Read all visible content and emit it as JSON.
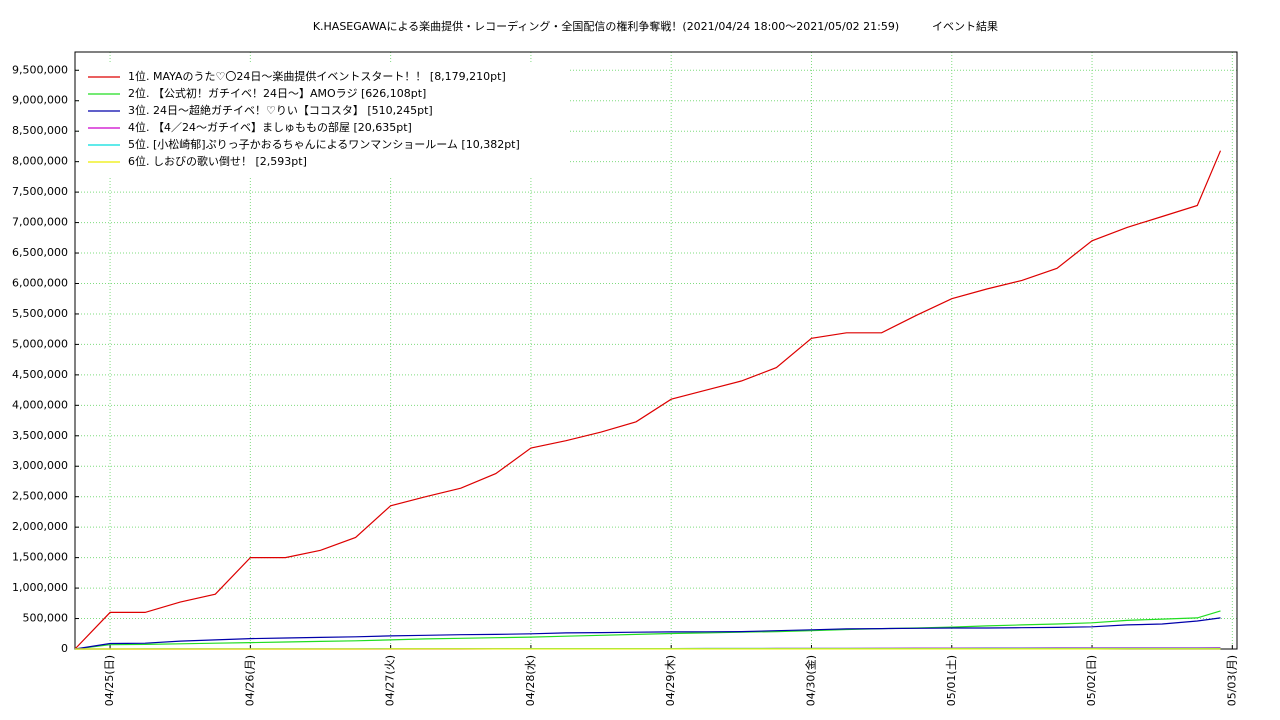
{
  "chart_data": {
    "type": "line",
    "title": "K.HASEGAWAによる楽曲提供・レコーディング・全国配信の権利争奪戦！(2021/04/24 18:00〜2021/05/02 21:59)",
    "subtitle": "イベント結果",
    "x": [
      "2021-04-24 18:00",
      "2021-04-25 00:00",
      "2021-04-25 06:00",
      "2021-04-25 12:00",
      "2021-04-25 18:00",
      "2021-04-26 00:00",
      "2021-04-26 06:00",
      "2021-04-26 12:00",
      "2021-04-26 18:00",
      "2021-04-27 00:00",
      "2021-04-27 06:00",
      "2021-04-27 12:00",
      "2021-04-27 18:00",
      "2021-04-28 00:00",
      "2021-04-28 06:00",
      "2021-04-28 12:00",
      "2021-04-28 18:00",
      "2021-04-29 00:00",
      "2021-04-29 06:00",
      "2021-04-29 12:00",
      "2021-04-29 18:00",
      "2021-04-30 00:00",
      "2021-04-30 06:00",
      "2021-04-30 12:00",
      "2021-04-30 18:00",
      "2021-05-01 00:00",
      "2021-05-01 06:00",
      "2021-05-01 12:00",
      "2021-05-01 18:00",
      "2021-05-02 00:00",
      "2021-05-02 06:00",
      "2021-05-02 12:00",
      "2021-05-02 18:00",
      "2021-05-02 21:59"
    ],
    "series": [
      {
        "name": "1位. MAYAのうた♡〇24日〜楽曲提供イベントスタート！！ [8,179,210pt]",
        "color": "#dd0000",
        "values": [
          0,
          600000,
          600000,
          770000,
          900000,
          1500000,
          1500000,
          1620000,
          1830000,
          2350000,
          2500000,
          2640000,
          2880000,
          3300000,
          3420000,
          3560000,
          3730000,
          4100000,
          4250000,
          4400000,
          4620000,
          5100000,
          5190000,
          5190000,
          5480000,
          5750000,
          5910000,
          6050000,
          6250000,
          6700000,
          6920000,
          7100000,
          7280000,
          8179210
        ]
      },
      {
        "name": "2位. 【公式初！ガチイベ！24日〜】AMOラジ [626,108pt]",
        "color": "#22dd22",
        "values": [
          0,
          70000,
          75000,
          85000,
          95000,
          105000,
          115000,
          125000,
          135000,
          150000,
          165000,
          175000,
          185000,
          195000,
          210000,
          225000,
          240000,
          255000,
          265000,
          275000,
          285000,
          300000,
          320000,
          335000,
          345000,
          360000,
          380000,
          395000,
          410000,
          430000,
          470000,
          490000,
          510000,
          626108
        ]
      },
      {
        "name": "3位. 24日〜超絶ガチイベ！♡りい【ココスタ】 [510,245pt]",
        "color": "#0000aa",
        "values": [
          0,
          90000,
          95000,
          130000,
          150000,
          170000,
          180000,
          190000,
          200000,
          215000,
          225000,
          235000,
          240000,
          250000,
          265000,
          270000,
          275000,
          280000,
          282000,
          285000,
          300000,
          315000,
          330000,
          335000,
          340000,
          345000,
          345000,
          350000,
          355000,
          365000,
          395000,
          410000,
          460000,
          510245
        ]
      },
      {
        "name": "4位. 【4／24〜ガチイベ】ましゅももの部屋 [20,635pt]",
        "color": "#cc00cc",
        "values": [
          0,
          0,
          0,
          0,
          0,
          0,
          0,
          0,
          0,
          0,
          0,
          0,
          2000,
          3000,
          4000,
          5000,
          6000,
          7000,
          8000,
          9000,
          10000,
          11000,
          12000,
          13000,
          14000,
          15000,
          16000,
          17000,
          17500,
          18000,
          18500,
          19000,
          20000,
          20635
        ]
      },
      {
        "name": "5位. [小松崎郁]ぷりっ子かおるちゃんによるワンマンショールーム [10,382pt]",
        "color": "#00dddd",
        "values": [
          0,
          500,
          1000,
          1500,
          2000,
          2500,
          3000,
          3500,
          4000,
          4500,
          5000,
          5300,
          5600,
          5900,
          6200,
          6500,
          6800,
          7100,
          7400,
          7700,
          8000,
          8200,
          8400,
          8600,
          8800,
          9000,
          9200,
          9400,
          9600,
          9800,
          10000,
          10100,
          10200,
          10382
        ]
      },
      {
        "name": "6位. しおびの歌い倒せ！ [2,593pt]",
        "color": "#eeee00",
        "values": [
          0,
          100,
          200,
          300,
          400,
          500,
          600,
          700,
          800,
          900,
          1000,
          1100,
          1200,
          1300,
          1400,
          1500,
          1600,
          1700,
          1800,
          1900,
          2000,
          2050,
          2100,
          2150,
          2200,
          2250,
          2300,
          2350,
          2400,
          2450,
          2500,
          2530,
          2560,
          2593
        ]
      }
    ],
    "xlim": [
      "2021-04-24 18:00",
      "2021-05-03 00:48"
    ],
    "xticks": [
      {
        "value": "2021-04-25 00:00",
        "label": "04/25(日)"
      },
      {
        "value": "2021-04-26 00:00",
        "label": "04/26(月)"
      },
      {
        "value": "2021-04-27 00:00",
        "label": "04/27(火)"
      },
      {
        "value": "2021-04-28 00:00",
        "label": "04/28(水)"
      },
      {
        "value": "2021-04-29 00:00",
        "label": "04/29(木)"
      },
      {
        "value": "2021-04-30 00:00",
        "label": "04/30(金)"
      },
      {
        "value": "2021-05-01 00:00",
        "label": "05/01(土)"
      },
      {
        "value": "2021-05-02 00:00",
        "label": "05/02(日)"
      },
      {
        "value": "2021-05-03 00:00",
        "label": "05/03(月)"
      }
    ],
    "ylim": [
      0,
      9800000
    ],
    "yticks": [
      0,
      {
        "value": 500000,
        "label": "500,000"
      },
      {
        "value": 1000000,
        "label": "1,000,000"
      },
      {
        "value": 1500000,
        "label": "1,500,000"
      },
      {
        "value": 2000000,
        "label": "2,000,000"
      },
      {
        "value": 2500000,
        "label": "2,500,000"
      },
      {
        "value": 3000000,
        "label": "3,000,000"
      },
      {
        "value": 3500000,
        "label": "3,500,000"
      },
      {
        "value": 4000000,
        "label": "4,000,000"
      },
      {
        "value": 4500000,
        "label": "4,500,000"
      },
      {
        "value": 5000000,
        "label": "5,000,000"
      },
      {
        "value": 5500000,
        "label": "5,500,000"
      },
      {
        "value": 6000000,
        "label": "6,000,000"
      },
      {
        "value": 6500000,
        "label": "6,500,000"
      },
      {
        "value": 7000000,
        "label": "7,000,000"
      },
      {
        "value": 7500000,
        "label": "7,500,000"
      },
      {
        "value": 8000000,
        "label": "8,000,000"
      },
      {
        "value": 8500000,
        "label": "8,500,000"
      },
      {
        "value": 9000000,
        "label": "9,000,000"
      },
      {
        "value": 9500000,
        "label": "9,500,000"
      }
    ],
    "grid": true,
    "legend": "upper left"
  }
}
